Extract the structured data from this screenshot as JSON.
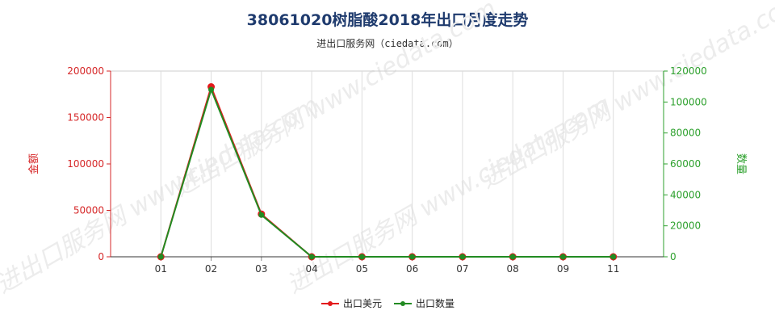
{
  "header": {
    "title": "38061020树脂酸2018年出口月度走势",
    "subtitle": "进出口服务网（ciedata.com）"
  },
  "watermark": "进出口服务网 www.ciedata.com",
  "chart_data": {
    "type": "line",
    "categories": [
      "01",
      "02",
      "03",
      "04",
      "05",
      "06",
      "07",
      "08",
      "09",
      "11"
    ],
    "left_axis": {
      "label": "金额",
      "ylim": [
        0,
        200000
      ],
      "ticks": [
        0,
        50000,
        100000,
        150000,
        200000
      ],
      "color": "#d62728"
    },
    "right_axis": {
      "label": "数量",
      "ylim": [
        0,
        120000
      ],
      "ticks": [
        0,
        20000,
        40000,
        60000,
        80000,
        100000,
        120000
      ],
      "color": "#2ca02c"
    },
    "grid": "vertical",
    "legend_position": "bottom",
    "series": [
      {
        "name": "出口美元",
        "axis": "left",
        "color": "#e31a1c",
        "values": [
          0,
          183000,
          46000,
          0,
          0,
          0,
          0,
          0,
          0,
          0
        ]
      },
      {
        "name": "出口数量",
        "axis": "right",
        "color": "#228b22",
        "values": [
          0,
          108000,
          27000,
          0,
          0,
          0,
          0,
          0,
          0,
          0
        ]
      }
    ]
  }
}
